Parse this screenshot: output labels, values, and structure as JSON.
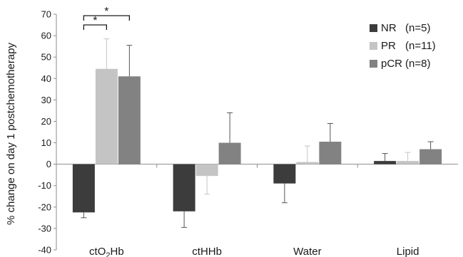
{
  "chart_data": {
    "type": "bar",
    "title": "",
    "ylabel": "% change on day 1 postchemotherapy",
    "xlabel": "",
    "ylim": [
      -40,
      70
    ],
    "yticks": [
      -40,
      -30,
      -20,
      -10,
      0,
      10,
      20,
      30,
      40,
      50,
      60,
      70
    ],
    "grid": false,
    "legend_position": "top-right",
    "categories": [
      {
        "main": "ctO",
        "sub": "2",
        "rest": "Hb"
      },
      {
        "main": "ctHHb",
        "sub": "",
        "rest": ""
      },
      {
        "main": "Water",
        "sub": "",
        "rest": ""
      },
      {
        "main": "Lipid",
        "sub": "",
        "rest": ""
      }
    ],
    "series": [
      {
        "name": "NR",
        "legend_label": "NR",
        "legend_n": "(n=5)",
        "color": "#3c3c3c",
        "values": [
          -22.5,
          -22,
          -9,
          1.5
        ],
        "errors": [
          2.5,
          7.5,
          9,
          3.5
        ]
      },
      {
        "name": "PR",
        "legend_label": "PR",
        "legend_n": "(n=11)",
        "color": "#c4c4c4",
        "values": [
          44.5,
          -5.5,
          1,
          1.5
        ],
        "errors": [
          14,
          8.5,
          7.5,
          4
        ]
      },
      {
        "name": "pCR",
        "legend_label": "pCR",
        "legend_n": "(n=8)",
        "color": "#828282",
        "values": [
          41,
          10,
          10.5,
          7
        ],
        "errors": [
          14.5,
          14,
          8.5,
          3.5
        ]
      }
    ],
    "significance": [
      {
        "category": 0,
        "from_series": 0,
        "to_series": 1,
        "label": "*"
      },
      {
        "category": 0,
        "from_series": 0,
        "to_series": 2,
        "label": "*"
      }
    ]
  }
}
